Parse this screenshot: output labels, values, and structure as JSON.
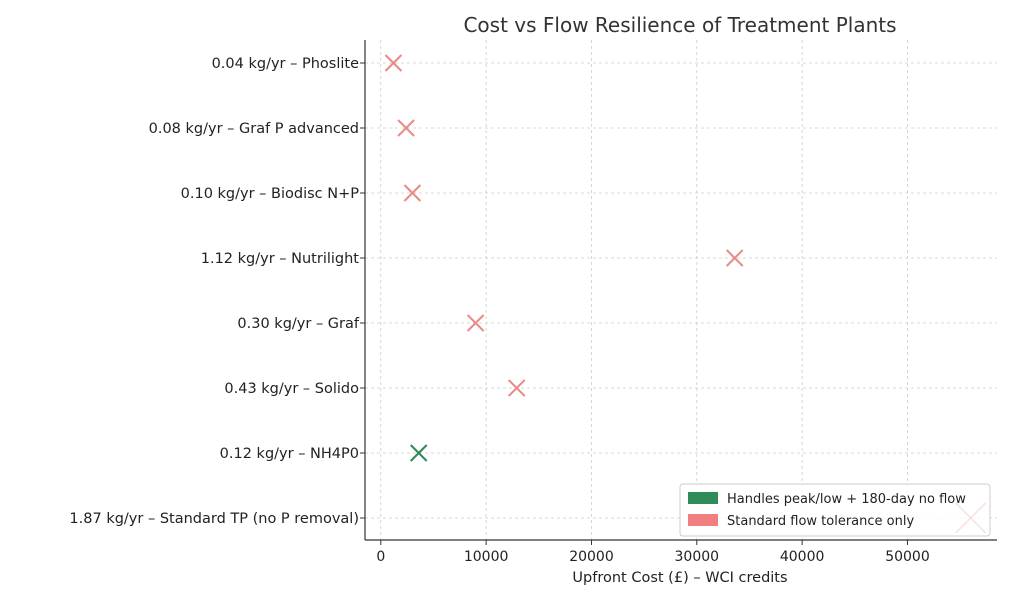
{
  "chart_data": {
    "type": "scatter",
    "title": "Cost vs Flow Resilience of Treatment Plants",
    "xlabel": "Upfront Cost (£) – WCI credits",
    "ylabel": "",
    "xlim": [
      -1500,
      58500
    ],
    "xticks": [
      "0",
      "10000",
      "20000",
      "30000",
      "40000",
      "50000"
    ],
    "xtick_values": [
      0,
      10000,
      20000,
      30000,
      40000,
      50000
    ],
    "grid": true,
    "legend_position": "bottom-right",
    "categories": [
      "0.04 kg/yr – Phoslite",
      "0.08 kg/yr – Graf P advanced",
      "0.10 kg/yr – Biodisc N+P",
      "1.12 kg/yr – Nutrilight",
      "0.30 kg/yr – Graf",
      "0.43 kg/yr – Solido",
      "0.12 kg/yr – NH4P0",
      "1.87 kg/yr – Standard TP (no P removal)"
    ],
    "points": [
      {
        "category": "0.04 kg/yr – Phoslite",
        "x": 1200,
        "color": "#e88a86"
      },
      {
        "category": "0.08 kg/yr – Graf P advanced",
        "x": 2400,
        "color": "#e88a86"
      },
      {
        "category": "0.10 kg/yr – Biodisc N+P",
        "x": 3000,
        "color": "#e88a86"
      },
      {
        "category": "1.12 kg/yr – Nutrilight",
        "x": 33600,
        "color": "#e88a86"
      },
      {
        "category": "0.30 kg/yr – Graf",
        "x": 9000,
        "color": "#e88a86"
      },
      {
        "category": "0.43 kg/yr – Solido",
        "x": 12900,
        "color": "#e88a86"
      },
      {
        "category": "0.12 kg/yr – NH4P0",
        "x": 3600,
        "color": "#2e8b57"
      },
      {
        "category": "1.87 kg/yr – Standard TP (no P removal)",
        "x": 56000,
        "color": "#d11a1a"
      }
    ],
    "legend": [
      {
        "label": "Handles peak/low + 180-day no flow",
        "color": "#2e8b57"
      },
      {
        "label": "Standard flow tolerance only",
        "color": "#f08080"
      }
    ]
  }
}
